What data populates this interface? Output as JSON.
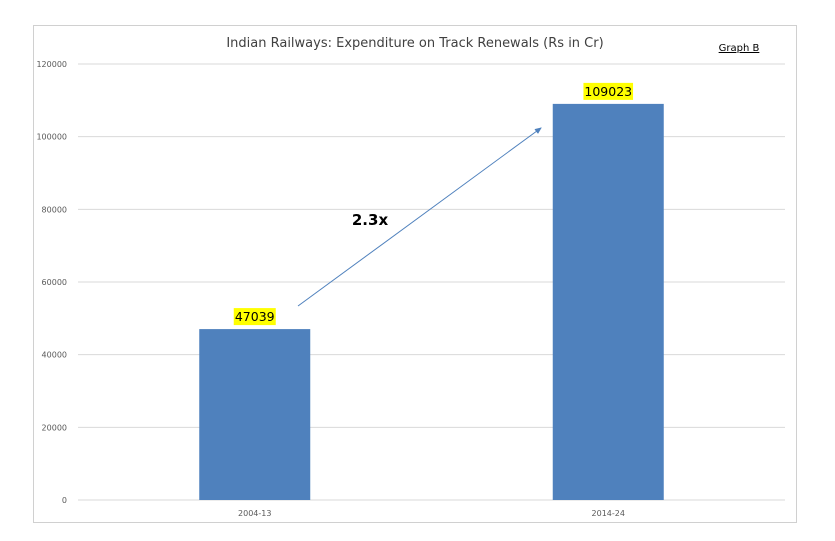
{
  "chart_data": {
    "type": "bar",
    "title": "Indian Railways: Expenditure on Track Renewals (Rs in Cr)",
    "graph_label": "Graph B",
    "categories": [
      "2004-13",
      "2014-24"
    ],
    "values": [
      47039,
      109023
    ],
    "data_labels": [
      "47039",
      "109023"
    ],
    "ylim": [
      0,
      120000
    ],
    "yticks": [
      0,
      20000,
      40000,
      60000,
      80000,
      100000,
      120000
    ],
    "ytick_labels": [
      "0",
      "20000",
      "40000",
      "60000",
      "80000",
      "100000",
      "120000"
    ],
    "grid": true,
    "legend": "none",
    "annotation": "2.3x",
    "bar_color": "#4f81bd",
    "label_highlight_color": "#ffff00",
    "arrow_color": "#4f81bd"
  }
}
